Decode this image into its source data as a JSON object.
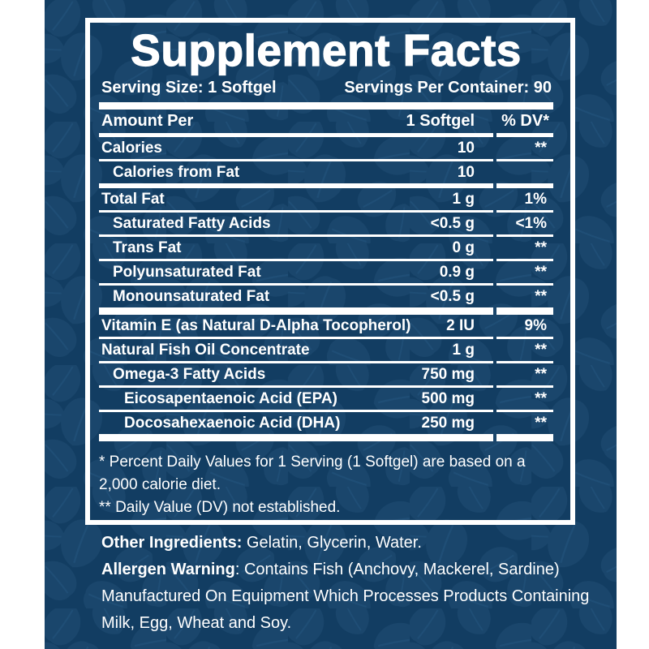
{
  "colors": {
    "page_background": "#ffffff",
    "panel_background": "#123d62",
    "leaf_pattern": "#1a466c",
    "rule_and_text": "#ffffff"
  },
  "supplement_facts": {
    "title": "Supplement Facts",
    "serving_size": "Serving Size: 1 Softgel",
    "servings_per_container": "Servings Per Container: 90",
    "columns": {
      "amount_per": "Amount Per",
      "serving": "1 Softgel",
      "daily_value": "% DV*"
    },
    "rows": [
      {
        "name": "Calories",
        "amount": "10",
        "dv": "**",
        "indent": 0,
        "sep": "thin"
      },
      {
        "name": "Calories from Fat",
        "amount": "10",
        "dv": "",
        "indent": 1,
        "sep": "medium"
      },
      {
        "name": "Total Fat",
        "amount": "1 g",
        "dv": "1%",
        "indent": 0,
        "sep": "thin"
      },
      {
        "name": "Saturated Fatty Acids",
        "amount": "<0.5 g",
        "dv": "<1%",
        "indent": 1,
        "sep": "thin"
      },
      {
        "name": "Trans Fat",
        "amount": "0 g",
        "dv": "**",
        "indent": 1,
        "sep": "thin"
      },
      {
        "name": "Polyunsaturated Fat",
        "amount": "0.9 g",
        "dv": "**",
        "indent": 1,
        "sep": "thin"
      },
      {
        "name": "Monounsaturated Fat",
        "amount": "<0.5 g",
        "dv": "**",
        "indent": 1,
        "sep": "thick"
      },
      {
        "name": "Vitamin E (as Natural D-Alpha Tocopherol)",
        "amount": "2 IU",
        "dv": "9%",
        "indent": 0,
        "sep": "thin"
      },
      {
        "name": "Natural Fish Oil Concentrate",
        "amount": "1 g",
        "dv": "**",
        "indent": 0,
        "sep": "thin"
      },
      {
        "name": "Omega-3 Fatty Acids",
        "amount": "750 mg",
        "dv": "**",
        "indent": 1,
        "sep": "thin"
      },
      {
        "name": "Eicosapentaenoic Acid (EPA)",
        "amount": "500 mg",
        "dv": "**",
        "indent": 2,
        "sep": "thin"
      },
      {
        "name": "Docosahexaenoic Acid (DHA)",
        "amount": "250 mg",
        "dv": "**",
        "indent": 2,
        "sep": "thick"
      }
    ],
    "footnotes": [
      "* Percent Daily Values for 1 Serving (1 Softgel) are based on a 2,000 calorie diet.",
      "** Daily Value (DV) not established."
    ]
  },
  "additional_info": {
    "other_ingredients_label": "Other Ingredients:",
    "other_ingredients_text": " Gelatin, Glycerin, Water.",
    "allergen_label": "Allergen Warning",
    "allergen_text": ": Contains Fish (Anchovy, Mackerel, Sardine) Manufactured On Equipment Which Processes Products Containing Milk, Egg, Wheat and Soy."
  }
}
